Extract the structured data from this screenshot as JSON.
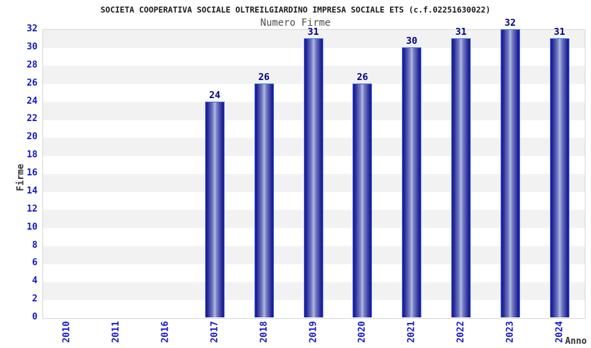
{
  "header": {
    "title": "SOCIETA COOPERATIVA SOCIALE OLTREILGIARDINO IMPRESA SOCIALE ETS (c.f.02251630022)",
    "subtitle": "Numero Firme"
  },
  "chart_data": {
    "type": "bar",
    "title": "SOCIETA COOPERATIVA SOCIALE OLTREILGIARDINO IMPRESA SOCIALE ETS (c.f.02251630022)",
    "subtitle": "Numero Firme",
    "xlabel": "Anno",
    "ylabel": "Firme",
    "categories": [
      "2010",
      "2011",
      "2016",
      "2017",
      "2018",
      "2019",
      "2020",
      "2021",
      "2022",
      "2023",
      "2024"
    ],
    "values": [
      0,
      0,
      0,
      24,
      26,
      31,
      26,
      30,
      31,
      32,
      31
    ],
    "bar_value_labels": [
      "",
      "",
      "",
      "24",
      "26",
      "31",
      "26",
      "30",
      "31",
      "32",
      "31"
    ],
    "ylim": [
      0,
      32
    ],
    "ytick_step": 2,
    "grid": "alternating horizontal bands every 2 units, gray band at top",
    "legend": "none",
    "colors": {
      "tick_label": "#1515cc",
      "value_label": "#00008b",
      "bar_edge_dark": "#191983",
      "bar_center_light": "#b4bce4",
      "bar_border": "#3d6cf2",
      "band_gray": "#f2f2f2",
      "band_white": "#ffffff",
      "plot_border": "#d6d6d6",
      "title_text": "#1a1a1a",
      "subtitle_text": "#4d4d4d",
      "axis_title_text": "#333333",
      "background": "#ffffff"
    }
  }
}
